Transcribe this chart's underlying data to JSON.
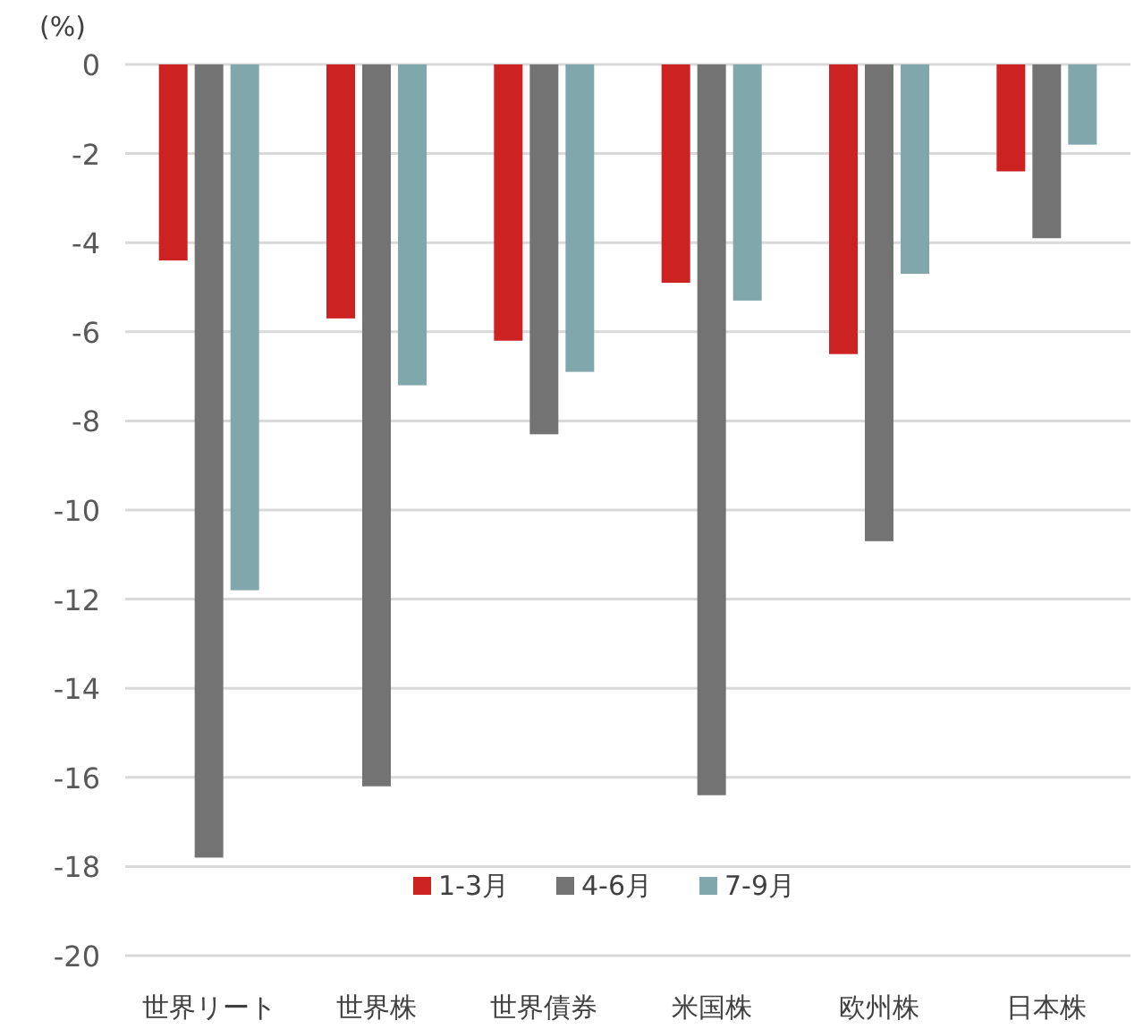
{
  "chart_data": {
    "type": "bar",
    "ylabel": "(%)",
    "categories": [
      "世界リート",
      "世界株",
      "世界債券",
      "米国株",
      "欧州株",
      "日本株"
    ],
    "series": [
      {
        "name": "1-3月",
        "color": "#cc2222",
        "values": [
          -4.4,
          -5.7,
          -6.2,
          -4.9,
          -6.5,
          -2.4
        ]
      },
      {
        "name": "4-6月",
        "color": "#737373",
        "values": [
          -17.8,
          -16.2,
          -8.3,
          -16.4,
          -10.7,
          -3.9
        ]
      },
      {
        "name": "7-9月",
        "color": "#80a8ac",
        "values": [
          -11.8,
          -7.2,
          -6.9,
          -5.3,
          -4.7,
          -1.8
        ]
      }
    ],
    "ylim": [
      -20,
      0
    ],
    "yticks": [
      0,
      -2,
      -4,
      -6,
      -8,
      -10,
      -12,
      -14,
      -16,
      -18,
      -20
    ],
    "grid": "y",
    "legend": "bottom"
  }
}
